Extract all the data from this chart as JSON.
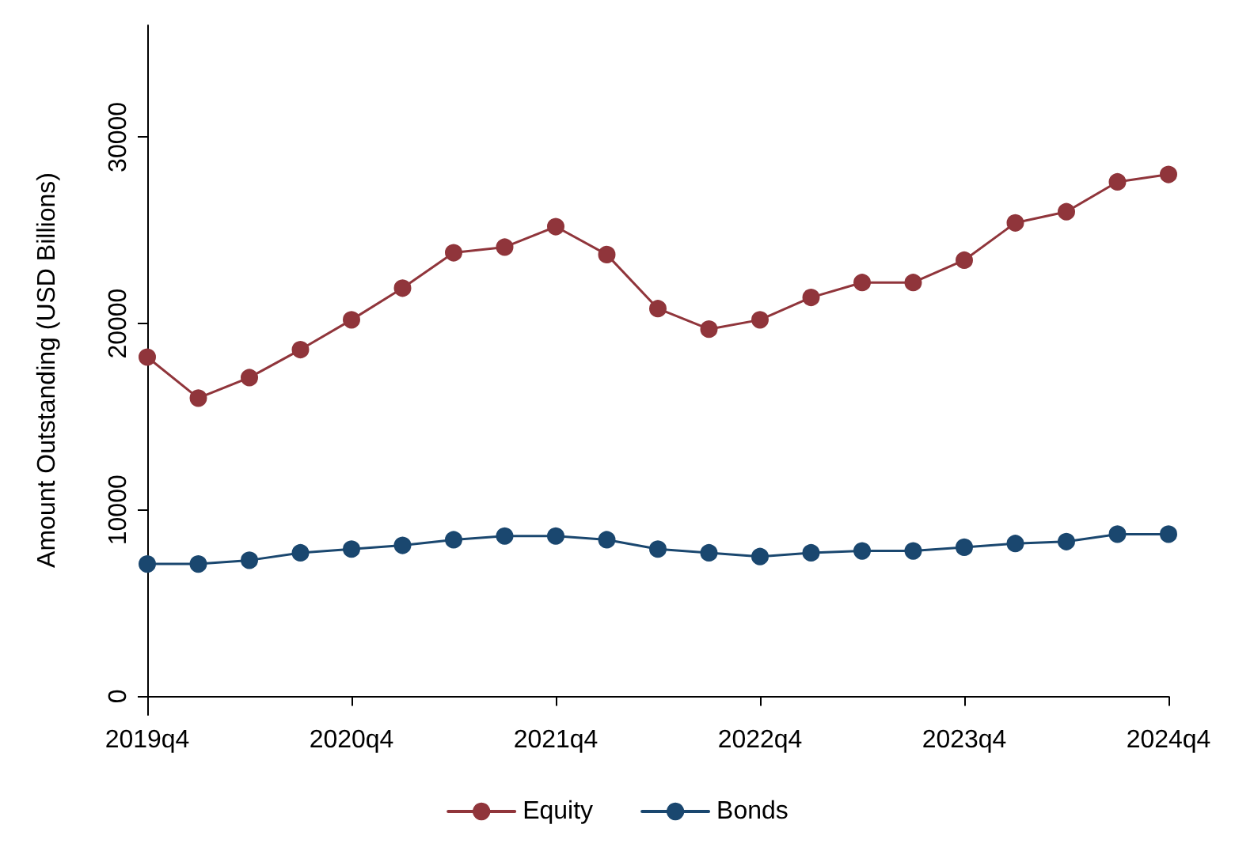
{
  "chart_data": {
    "type": "line",
    "ylabel": "Amount Outstanding (USD Billions)",
    "categories": [
      "2019q4",
      null,
      null,
      null,
      "2020q4",
      null,
      null,
      null,
      "2021q4",
      null,
      null,
      null,
      "2022q4",
      null,
      null,
      null,
      "2023q4",
      null,
      null,
      null,
      "2024q4"
    ],
    "series": [
      {
        "name": "Equity",
        "color": "#90353b",
        "values": [
          18200,
          16000,
          17100,
          18600,
          20200,
          21900,
          23800,
          24100,
          25200,
          23700,
          20800,
          19700,
          20200,
          21400,
          22200,
          22200,
          23400,
          25400,
          26000,
          27600,
          28000
        ]
      },
      {
        "name": "Bonds",
        "color": "#1a476f",
        "values": [
          7100,
          7100,
          7300,
          7700,
          7900,
          8100,
          8400,
          8600,
          8600,
          8400,
          7900,
          7700,
          7500,
          7700,
          7800,
          7800,
          8000,
          8200,
          8300,
          8700,
          8700
        ]
      }
    ],
    "ylim": [
      -1000,
      36000
    ],
    "yticks": [
      0,
      10000,
      20000,
      30000
    ],
    "grid": false,
    "legend": "bottom",
    "marker": "circle",
    "line_style": "solid"
  }
}
